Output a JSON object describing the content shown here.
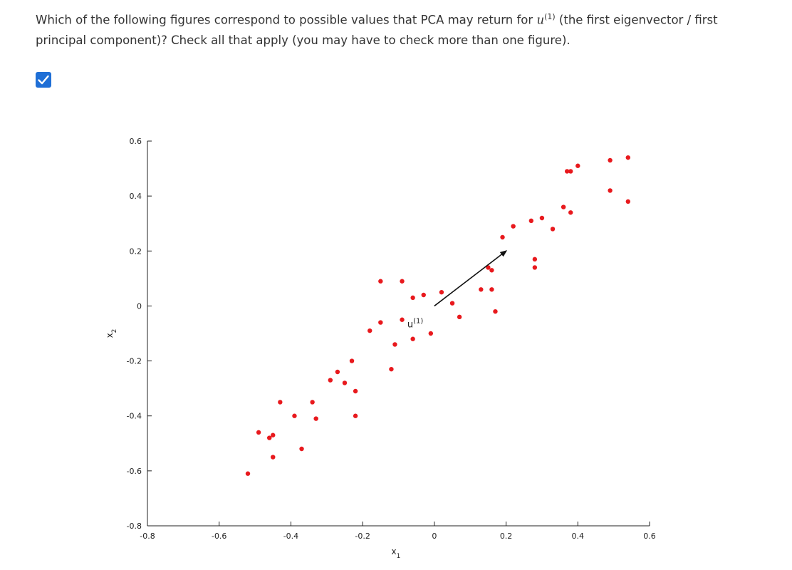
{
  "question": {
    "text_before": "Which of the following figures correspond to possible values that PCA may return for ",
    "symbol": "u",
    "superscript": "(1)",
    "text_after": " (the first eigenvector / first principal component)? Check all that apply (you may have to check more than one figure)."
  },
  "option_checkbox": {
    "checked": true,
    "icon": "checkmark-icon",
    "color": "#1f6fd6"
  },
  "chart_data": {
    "type": "scatter",
    "title": "",
    "xlabel": "x",
    "xlabel_sub": "1",
    "ylabel": "x",
    "ylabel_sub": "2",
    "xlim": [
      -0.8,
      0.6
    ],
    "ylim": [
      -0.8,
      0.6
    ],
    "xticks": [
      -0.8,
      -0.6,
      -0.4,
      -0.2,
      0,
      0.2,
      0.4,
      0.6
    ],
    "xtick_labels": [
      "-0.8",
      "-0.6",
      "-0.4",
      "-0.2",
      "0",
      "0.2",
      "0.4",
      "0.6"
    ],
    "yticks": [
      0.6,
      0.4,
      0.2,
      0,
      -0.2,
      -0.4,
      -0.6,
      -0.8
    ],
    "ytick_labels": [
      "0.6",
      "0.4",
      "0.2",
      "0",
      "-0.2",
      "-0.4",
      "-0.6",
      "-0.8"
    ],
    "grid": false,
    "point_color": "#e8191d",
    "points": [
      [
        -0.52,
        -0.61
      ],
      [
        -0.49,
        -0.46
      ],
      [
        -0.46,
        -0.48
      ],
      [
        -0.45,
        -0.47
      ],
      [
        -0.45,
        -0.55
      ],
      [
        -0.43,
        -0.35
      ],
      [
        -0.39,
        -0.4
      ],
      [
        -0.37,
        -0.52
      ],
      [
        -0.34,
        -0.35
      ],
      [
        -0.33,
        -0.41
      ],
      [
        -0.29,
        -0.27
      ],
      [
        -0.27,
        -0.24
      ],
      [
        -0.25,
        -0.28
      ],
      [
        -0.23,
        -0.2
      ],
      [
        -0.22,
        -0.31
      ],
      [
        -0.22,
        -0.4
      ],
      [
        -0.18,
        -0.09
      ],
      [
        -0.15,
        -0.06
      ],
      [
        -0.15,
        0.09
      ],
      [
        -0.12,
        -0.23
      ],
      [
        -0.11,
        -0.14
      ],
      [
        -0.09,
        0.09
      ],
      [
        -0.09,
        -0.05
      ],
      [
        -0.06,
        0.03
      ],
      [
        -0.06,
        -0.12
      ],
      [
        -0.03,
        0.04
      ],
      [
        -0.01,
        -0.1
      ],
      [
        0.02,
        0.05
      ],
      [
        0.05,
        0.01
      ],
      [
        0.07,
        -0.04
      ],
      [
        0.13,
        0.06
      ],
      [
        0.15,
        0.14
      ],
      [
        0.16,
        0.13
      ],
      [
        0.16,
        0.06
      ],
      [
        0.17,
        -0.02
      ],
      [
        0.19,
        0.25
      ],
      [
        0.22,
        0.29
      ],
      [
        0.27,
        0.31
      ],
      [
        0.28,
        0.17
      ],
      [
        0.28,
        0.14
      ],
      [
        0.3,
        0.32
      ],
      [
        0.33,
        0.28
      ],
      [
        0.36,
        0.36
      ],
      [
        0.37,
        0.49
      ],
      [
        0.38,
        0.49
      ],
      [
        0.38,
        0.34
      ],
      [
        0.4,
        0.51
      ],
      [
        0.49,
        0.53
      ],
      [
        0.49,
        0.42
      ],
      [
        0.54,
        0.54
      ],
      [
        0.54,
        0.38
      ]
    ],
    "vector": {
      "from": [
        0,
        0
      ],
      "to": [
        0.2,
        0.2
      ],
      "label": "u",
      "label_superscript": "(1)"
    }
  }
}
